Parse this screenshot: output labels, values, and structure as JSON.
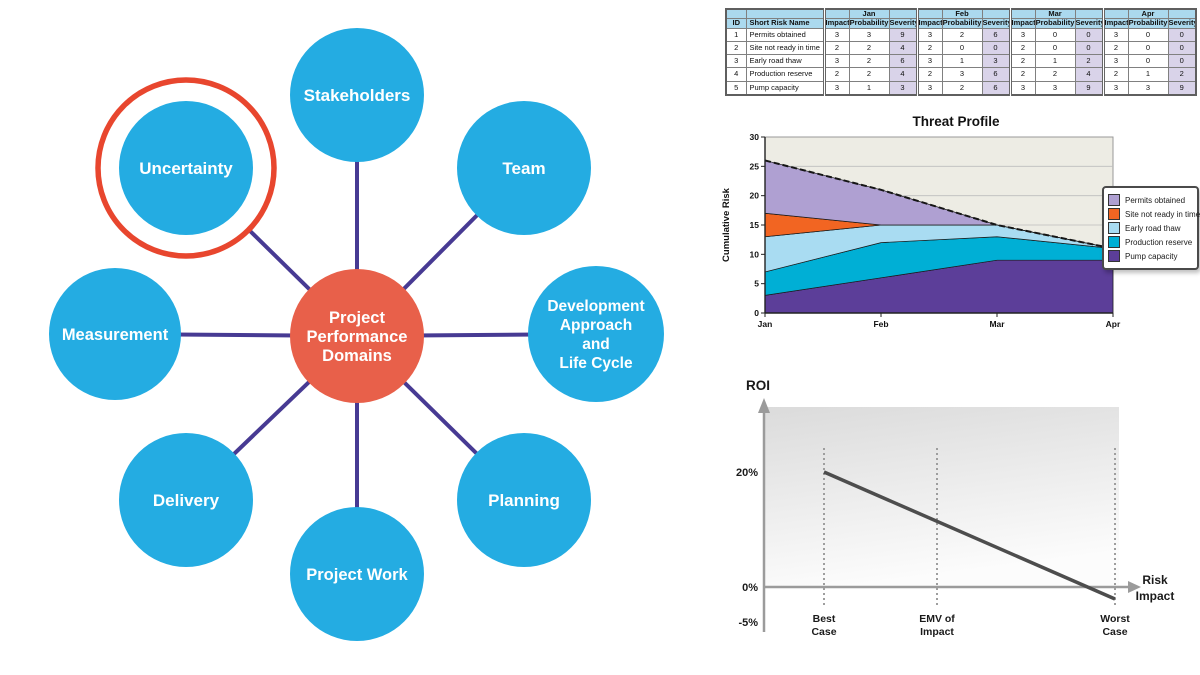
{
  "diagram": {
    "center": {
      "id": "project-performance-domains",
      "lines": [
        "Project",
        "Performance",
        "Domains"
      ]
    },
    "nodes": [
      {
        "id": "stakeholders",
        "lines": [
          "Stakeholders"
        ],
        "highlighted": false
      },
      {
        "id": "uncertainty",
        "lines": [
          "Uncertainty"
        ],
        "highlighted": true
      },
      {
        "id": "team",
        "lines": [
          "Team"
        ],
        "highlighted": false
      },
      {
        "id": "measurement",
        "lines": [
          "Measurement"
        ],
        "highlighted": false
      },
      {
        "id": "development-approach",
        "lines": [
          "Development",
          "Approach",
          "and",
          "Life Cycle"
        ],
        "highlighted": false
      },
      {
        "id": "delivery",
        "lines": [
          "Delivery"
        ],
        "highlighted": false
      },
      {
        "id": "planning",
        "lines": [
          "Planning"
        ],
        "highlighted": false
      },
      {
        "id": "project-work",
        "lines": [
          "Project Work"
        ],
        "highlighted": false
      }
    ],
    "colors": {
      "node": "#24ACE2",
      "center": "#E8604A",
      "line": "#473A93",
      "highlight_ring": "#E8462E",
      "text": "#FFFFFF"
    }
  },
  "risk_table": {
    "id_header": "ID",
    "name_header": "Short Risk Name",
    "months": [
      "Jan",
      "Feb",
      "Mar",
      "Apr"
    ],
    "sub_headers": [
      "Impact",
      "Probability",
      "Severity"
    ],
    "rows": [
      {
        "id": 1,
        "name": "Permits obtained",
        "values": [
          [
            3,
            3,
            9
          ],
          [
            3,
            2,
            6
          ],
          [
            3,
            0,
            0
          ],
          [
            3,
            0,
            0
          ]
        ]
      },
      {
        "id": 2,
        "name": "Site not ready in time",
        "values": [
          [
            2,
            2,
            4
          ],
          [
            2,
            0,
            0
          ],
          [
            2,
            0,
            0
          ],
          [
            2,
            0,
            0
          ]
        ]
      },
      {
        "id": 3,
        "name": "Early road thaw",
        "values": [
          [
            3,
            2,
            6
          ],
          [
            3,
            1,
            3
          ],
          [
            2,
            1,
            2
          ],
          [
            3,
            0,
            0
          ]
        ]
      },
      {
        "id": 4,
        "name": "Production reserve",
        "values": [
          [
            2,
            2,
            4
          ],
          [
            2,
            3,
            6
          ],
          [
            2,
            2,
            4
          ],
          [
            2,
            1,
            2
          ]
        ]
      },
      {
        "id": 5,
        "name": "Pump capacity",
        "values": [
          [
            3,
            1,
            3
          ],
          [
            3,
            2,
            6
          ],
          [
            3,
            3,
            9
          ],
          [
            3,
            3,
            9
          ]
        ]
      }
    ]
  },
  "chart_data": [
    {
      "type": "area",
      "stacked": true,
      "title": "Threat Profile",
      "xlabel": "",
      "ylabel": "Cumulative Risk",
      "x": [
        "Jan",
        "Feb",
        "Mar",
        "Apr"
      ],
      "ylim": [
        0,
        30
      ],
      "yticks": [
        0,
        5,
        10,
        15,
        20,
        25,
        30
      ],
      "grid": true,
      "legend_position": "right",
      "series": [
        {
          "name": "Pump capacity",
          "values": [
            3,
            6,
            9,
            9
          ],
          "color": "#5C3E99"
        },
        {
          "name": "Production reserve",
          "values": [
            4,
            6,
            4,
            2
          ],
          "color": "#00AFD5"
        },
        {
          "name": "Early road thaw",
          "values": [
            6,
            3,
            2,
            0
          ],
          "color": "#A9DCF2"
        },
        {
          "name": "Site not ready in time",
          "values": [
            4,
            0,
            0,
            0
          ],
          "color": "#F26522"
        },
        {
          "name": "Permits obtained",
          "values": [
            9,
            6,
            0,
            0
          ],
          "color": "#AFA0D2"
        }
      ],
      "total_line": {
        "style": "dashed",
        "color": "#151515",
        "values": [
          26,
          21,
          15,
          11
        ]
      },
      "legend_order": [
        "Permits obtained",
        "Site not ready in time",
        "Early road thaw",
        "Production reserve",
        "Pump capacity"
      ]
    },
    {
      "type": "line",
      "title": "",
      "ylabel": "ROI",
      "xlabel": "Risk Impact",
      "xlabel_lines": [
        "Risk",
        "Impact"
      ],
      "yticks": [
        "20%",
        "0%",
        "-5%"
      ],
      "x_markers": [
        {
          "label": "Best Case",
          "lines": [
            "Best",
            "Case"
          ]
        },
        {
          "label": "EMV of Impact",
          "lines": [
            "EMV of",
            "Impact"
          ]
        },
        {
          "label": "Worst Case",
          "lines": [
            "Worst",
            "Case"
          ]
        }
      ],
      "line": {
        "from": {
          "x": "Best Case",
          "roi_pct": 20
        },
        "to": {
          "x": "Worst Case",
          "roi_pct": -2
        }
      }
    }
  ]
}
